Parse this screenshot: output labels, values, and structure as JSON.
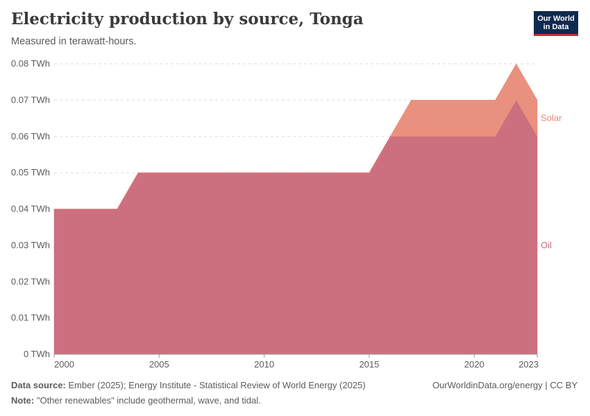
{
  "title": "Electricity production by source, Tonga",
  "subtitle": "Measured in terawatt-hours.",
  "logo": {
    "line1": "Our World",
    "line2": "in Data"
  },
  "footer": {
    "source_label": "Data source:",
    "source_text": "Ember (2025); Energy Institute - Statistical Review of World Energy (2025)",
    "note_label": "Note:",
    "note_text": "\"Other renewables\" include geothermal, wave, and tidal.",
    "credit": "OurWorldinData.org/energy | CC BY"
  },
  "chart_data": {
    "type": "area",
    "stacked": true,
    "title": "Electricity production by source, Tonga",
    "ylabel": "TWh",
    "unit_suffix": " TWh",
    "xlim": [
      2000,
      2023
    ],
    "ylim": [
      0,
      0.08
    ],
    "x_ticks": [
      2000,
      2005,
      2010,
      2015,
      2020,
      2023
    ],
    "y_ticks": [
      0,
      0.01,
      0.02,
      0.03,
      0.04,
      0.05,
      0.06,
      0.07,
      0.08
    ],
    "y_tick_labels": [
      "0 TWh",
      "0.01 TWh",
      "0.02 TWh",
      "0.03 TWh",
      "0.04 TWh",
      "0.05 TWh",
      "0.06 TWh",
      "0.07 TWh",
      "0.08 TWh"
    ],
    "x": [
      2000,
      2001,
      2002,
      2003,
      2004,
      2005,
      2006,
      2007,
      2008,
      2009,
      2010,
      2011,
      2012,
      2013,
      2014,
      2015,
      2016,
      2017,
      2018,
      2019,
      2020,
      2021,
      2022,
      2023
    ],
    "series": [
      {
        "name": "Oil",
        "color": "#c96879",
        "values": [
          0.04,
          0.04,
          0.04,
          0.04,
          0.05,
          0.05,
          0.05,
          0.05,
          0.05,
          0.05,
          0.05,
          0.05,
          0.05,
          0.05,
          0.05,
          0.05,
          0.06,
          0.06,
          0.06,
          0.06,
          0.06,
          0.06,
          0.07,
          0.06
        ]
      },
      {
        "name": "Solar",
        "color": "#e98a77",
        "values": [
          0,
          0,
          0,
          0,
          0,
          0,
          0,
          0,
          0,
          0,
          0,
          0,
          0,
          0,
          0,
          0,
          0,
          0.01,
          0.01,
          0.01,
          0.01,
          0.01,
          0.01,
          0.01
        ]
      }
    ],
    "legend_placement": "right, inline labels"
  }
}
